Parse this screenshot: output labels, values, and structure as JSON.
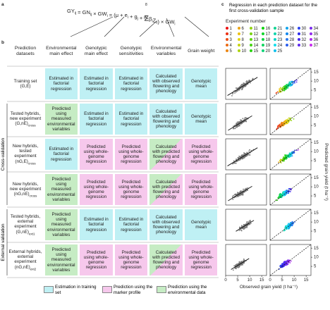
{
  "panel_a": {
    "label": "a",
    "equation": {
      "left": [
        {
          "text": "GY",
          "sub": "ij"
        },
        {
          "text": " = GN",
          "sub": "ij"
        },
        {
          "text": " × GW",
          "sub": "i"
        },
        {
          "text": " = (μ + e",
          "sub": "i"
        },
        {
          "text": " + g",
          "sub": "j"
        },
        {
          "text": " + "
        }
      ],
      "sum": {
        "symbol": "Σ",
        "upper": "8",
        "lower": "l=1"
      },
      "right": [
        {
          "text": "β",
          "sub": "l"
        },
        {
          "text": "Z",
          "sub": "il"
        },
        {
          "text": ") × GW",
          "sub": "i"
        }
      ]
    }
  },
  "panel_b": {
    "label": "b",
    "headers": [
      "Prediction datasets",
      "Environmental main effect",
      "Genotypic main effect",
      "Genotypic sensitivities",
      "Environmental variables",
      "Grain weight"
    ],
    "side_labels": [
      "Cross-validation",
      "External validation"
    ],
    "rows": [
      {
        "dataset": "Training set",
        "code": "(G,E)",
        "cells": [
          "Estimated in factorial regression",
          "Estimated in factorial regression",
          "Estimated in factorial regression",
          "Calculated with observed flowering and phenology",
          "Genotypic mean"
        ]
      },
      {
        "dataset": "Tested hybrids, new experiment",
        "code": "(G,nE)",
        "sub": "cross",
        "cells": [
          "Predicted using measured environmental variables",
          "Estimated in factorial regression",
          "Estimated in factorial regression",
          "Calculated with observed flowering and phenology",
          "Genotypic mean"
        ]
      },
      {
        "dataset": "New hybrids, tested experiment",
        "code": "(nG,E)",
        "sub": "cross",
        "cells": [
          "Estimated in factorial regression",
          "Predicted using whole-genome regression",
          "Predicted using whole-genome regression",
          "Calculated with predicted flowering and phenology",
          "Predicted using whole-genome regression"
        ]
      },
      {
        "dataset": "New hybrids, new experiment",
        "code": "(nG,nE)",
        "sub": "cross",
        "cells": [
          "Predicted using measured environmental variables",
          "Predicted using whole-genome regression",
          "Predicted using whole-genome regression",
          "Calculated with predicted flowering and phenology",
          "Predicted using whole-genome regression"
        ]
      },
      {
        "dataset": "Tested hybrids, external experiment",
        "code": "(G,nE)",
        "sub": "ext1",
        "cells": [
          "Predicted using measured environmental variables",
          "Estimated in factorial regression",
          "Estimated in factorial regression",
          "Calculated with observed flowering and phenology",
          "Genotypic mean"
        ]
      },
      {
        "dataset": "External hybrids, external experiment",
        "code": "(nG,nE)",
        "sub": "ext2",
        "cells": [
          "Predicted using measured environmental variables",
          "Predicted using whole-genome regression",
          "Predicted using whole-genome regression",
          "Calculated with predicted flowering and phenology",
          "Predicted using whole-genome regression"
        ]
      }
    ],
    "legend": [
      "Estimation in training set",
      "Prediction using the marker profile",
      "Prediction using the environmental data"
    ]
  },
  "panel_c": {
    "label": "c",
    "title": "Regression in each prediction dataset for the first cross-validation sample",
    "legend_title": "Experiment number",
    "experiments": [
      1,
      2,
      3,
      4,
      5,
      6,
      7,
      8,
      9,
      10,
      11,
      12,
      13,
      14,
      15,
      16,
      17,
      18,
      19,
      20,
      21,
      22,
      23,
      24,
      25,
      26,
      27,
      28,
      29,
      30,
      31,
      32,
      33,
      34,
      35,
      36,
      37
    ],
    "colors": [
      "hsl(0,85%,50%)",
      "hsl(8,85%,50%)",
      "hsl(16,85%,50%)",
      "hsl(24,85%,50%)",
      "hsl(32,85%,50%)",
      "hsl(40,85%,50%)",
      "hsl(48,85%,50%)",
      "hsl(56,85%,48%)",
      "hsl(64,85%,45%)",
      "hsl(72,85%,45%)",
      "hsl(80,85%,45%)",
      "hsl(88,85%,45%)",
      "hsl(96,85%,45%)",
      "hsl(104,85%,45%)",
      "hsl(112,85%,45%)",
      "hsl(120,85%,45%)",
      "hsl(128,85%,45%)",
      "hsl(136,85%,45%)",
      "hsl(144,85%,45%)",
      "hsl(152,85%,45%)",
      "hsl(160,85%,45%)",
      "hsl(168,85%,45%)",
      "hsl(176,85%,45%)",
      "hsl(184,85%,50%)",
      "hsl(192,85%,50%)",
      "hsl(200,85%,50%)",
      "hsl(208,85%,50%)",
      "hsl(216,85%,55%)",
      "hsl(224,85%,55%)",
      "hsl(232,85%,55%)",
      "hsl(240,85%,55%)",
      "hsl(248,85%,55%)",
      "hsl(256,85%,55%)",
      "hsl(264,85%,55%)",
      "hsl(272,85%,55%)",
      "hsl(280,85%,55%)",
      "hsl(288,85%,55%)"
    ],
    "xlabel": "Observed grain yield (t ha⁻¹)",
    "ylabel": "Predicted grain yield (t ha⁻¹)",
    "xlim": [
      0,
      17
    ],
    "ylim": [
      0,
      17
    ],
    "xticks": [
      0,
      5,
      10,
      15
    ],
    "yticks": [
      5,
      10,
      15
    ]
  }
}
